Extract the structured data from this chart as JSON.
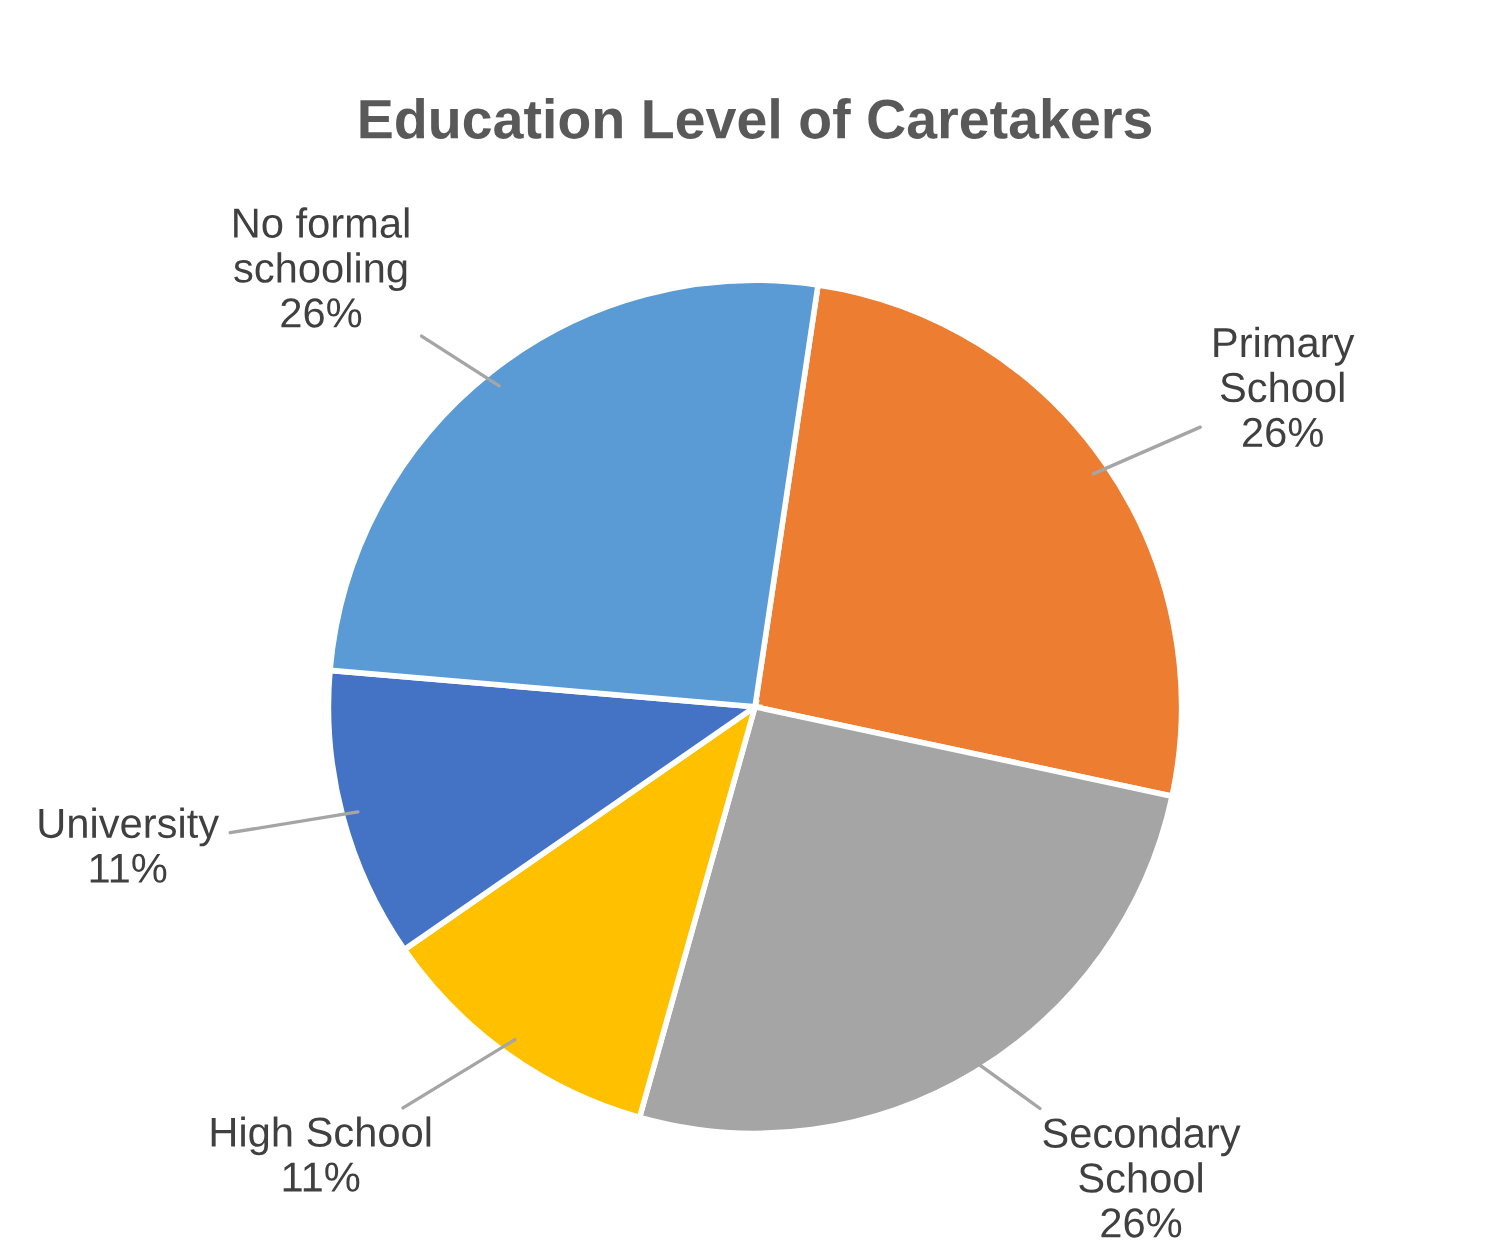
{
  "chart_data": {
    "type": "pie",
    "title": "Education Level of Caretakers",
    "categories": [
      "Primary\nSchool",
      "Secondary\nSchool",
      "High School",
      "University",
      "No formal\nschooling"
    ],
    "values": [
      26,
      26,
      11,
      11,
      26
    ],
    "value_labels": [
      "26%",
      "26%",
      "11%",
      "11%",
      "26%"
    ],
    "colors": [
      "#ed7d31",
      "#a5a5a5",
      "#ffc000",
      "#4472c4",
      "#5b9bd5"
    ],
    "legend": false
  }
}
